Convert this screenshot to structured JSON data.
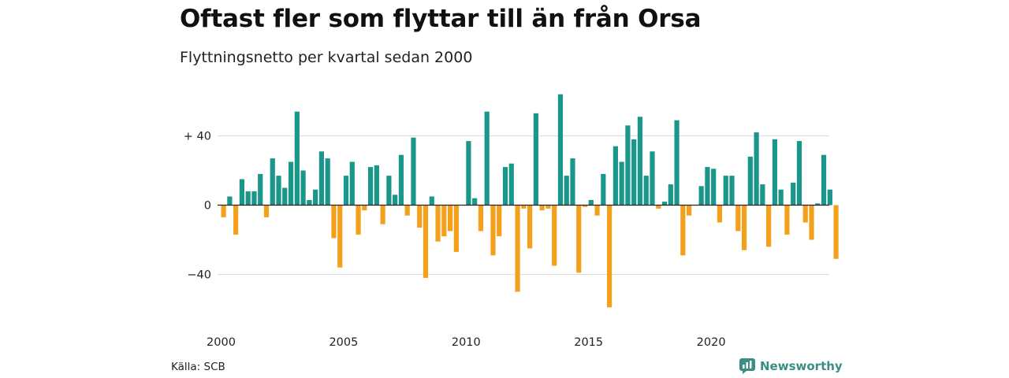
{
  "title": "Oftast fler som flyttar till än från Orsa",
  "subtitle": "Flyttningsnetto per kvartal sedan 2000",
  "source": "Källa: SCB",
  "brand": "Newsworthy",
  "colors": {
    "positive": "#1a968a",
    "negative": "#f4a01d",
    "grid": "#dddddd",
    "zero": "#222222"
  },
  "chart_data": {
    "type": "bar",
    "title": "Oftast fler som flyttar till än från Orsa",
    "subtitle": "Flyttningsnetto per kvartal sedan 2000",
    "ylim": [
      -60,
      65
    ],
    "yticks": [
      {
        "value": 40,
        "label": "+ 40"
      },
      {
        "value": 0,
        "label": "0"
      },
      {
        "value": -40,
        "label": "−40"
      }
    ],
    "xticks": [
      {
        "year": 2000,
        "label": "2000"
      },
      {
        "year": 2005,
        "label": "2005"
      },
      {
        "year": 2010,
        "label": "2010"
      },
      {
        "year": 2015,
        "label": "2015"
      },
      {
        "year": 2020,
        "label": "2020"
      }
    ],
    "grid": true,
    "start": "2000 Q1",
    "values": [
      -7,
      5,
      -17,
      15,
      8,
      8,
      18,
      -7,
      27,
      17,
      10,
      25,
      54,
      20,
      3,
      9,
      31,
      27,
      -19,
      -36,
      17,
      25,
      -17,
      -3,
      22,
      23,
      -11,
      17,
      6,
      29,
      -6,
      39,
      -13,
      -42,
      5,
      -21,
      -18,
      -15,
      -27,
      0,
      37,
      4,
      -15,
      54,
      -29,
      -18,
      22,
      24,
      -50,
      -2,
      -25,
      53,
      -3,
      -2,
      -35,
      64,
      17,
      27,
      -39,
      -1,
      3,
      -6,
      18,
      -59,
      34,
      25,
      46,
      38,
      51,
      17,
      31,
      -2,
      2,
      12,
      49,
      -29,
      -6,
      0,
      11,
      22,
      21,
      -10,
      17,
      17,
      -15,
      -26,
      28,
      42,
      12,
      -24,
      38,
      9,
      -17,
      13,
      37,
      -10,
      -20,
      1,
      29,
      9,
      -31
    ]
  }
}
